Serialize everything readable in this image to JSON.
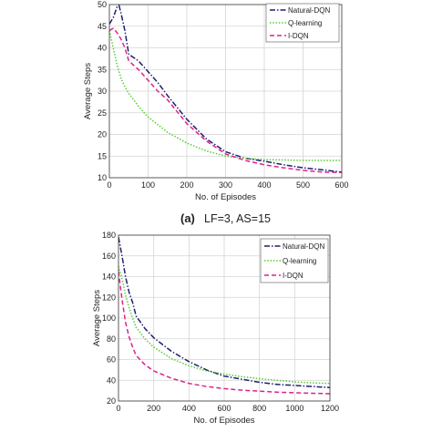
{
  "caption_a": {
    "label": "(a)",
    "text": "LF=3, AS=15"
  },
  "chart_data": [
    {
      "type": "line",
      "xlabel": "No. of Episodes",
      "ylabel": "Average Steps",
      "xlim": [
        0,
        600
      ],
      "ylim": [
        10,
        50
      ],
      "xticks": [
        "0",
        "100",
        "200",
        "300",
        "400",
        "500",
        "600"
      ],
      "yticks": [
        "10",
        "15",
        "20",
        "25",
        "30",
        "35",
        "40",
        "45",
        "50"
      ],
      "grid": true,
      "legend_position": "top-right",
      "series": [
        {
          "name": "Natural-DQN",
          "color": "#1f1f70",
          "dash": "dashdot",
          "x": [
            0,
            10,
            20,
            25,
            30,
            40,
            50,
            75,
            100,
            125,
            150,
            200,
            250,
            300,
            350,
            400,
            450,
            500,
            550,
            600
          ],
          "y": [
            45.5,
            47,
            49.5,
            49.8,
            48,
            44,
            38.5,
            37,
            34.5,
            32,
            29,
            23.5,
            19,
            16,
            14.5,
            13.8,
            13,
            12.3,
            11.8,
            11.3
          ]
        },
        {
          "name": "Q-learning",
          "color": "#55cc33",
          "dash": "dotted",
          "x": [
            0,
            10,
            20,
            30,
            40,
            50,
            75,
            100,
            150,
            200,
            250,
            300,
            350,
            400,
            450,
            500,
            550,
            600
          ],
          "y": [
            44,
            40,
            36,
            33,
            31,
            29.5,
            26.5,
            24,
            20.5,
            18,
            16.2,
            15,
            14.5,
            14.2,
            14.1,
            14,
            14,
            14
          ]
        },
        {
          "name": "I-DQN",
          "color": "#e0208a",
          "dash": "dashed",
          "x": [
            0,
            10,
            20,
            30,
            40,
            50,
            75,
            100,
            125,
            150,
            200,
            250,
            300,
            350,
            400,
            450,
            500,
            550,
            600
          ],
          "y": [
            44,
            44.5,
            43.5,
            42,
            40,
            37,
            35,
            32.5,
            30,
            28,
            22.5,
            18.5,
            15.5,
            14,
            13,
            12.3,
            11.7,
            11.3,
            11.2
          ]
        }
      ]
    },
    {
      "type": "line",
      "xlabel": "No. of Episodes",
      "ylabel": "Average Steps",
      "xlim": [
        0,
        1200
      ],
      "ylim": [
        20,
        180
      ],
      "xticks": [
        "0",
        "200",
        "400",
        "600",
        "800",
        "1000",
        "1200"
      ],
      "yticks": [
        "20",
        "40",
        "60",
        "80",
        "100",
        "120",
        "140",
        "160",
        "180"
      ],
      "grid": true,
      "legend_position": "top-right",
      "series": [
        {
          "name": "Natural-DQN",
          "color": "#1f1f70",
          "dash": "dashdot",
          "x": [
            0,
            20,
            40,
            60,
            80,
            100,
            150,
            200,
            300,
            400,
            500,
            600,
            700,
            800,
            900,
            1000,
            1100,
            1200
          ],
          "y": [
            178,
            160,
            140,
            125,
            115,
            102,
            90,
            81,
            68,
            58,
            50,
            44,
            41,
            38,
            36,
            35,
            34,
            33
          ]
        },
        {
          "name": "Q-learning",
          "color": "#55cc33",
          "dash": "dotted",
          "x": [
            0,
            20,
            40,
            60,
            80,
            100,
            150,
            200,
            300,
            400,
            500,
            600,
            700,
            800,
            900,
            1000,
            1100,
            1200
          ],
          "y": [
            150,
            138,
            122,
            110,
            100,
            91,
            80,
            72,
            61,
            54,
            49,
            46,
            43.5,
            41.5,
            40,
            38.5,
            37.5,
            37
          ]
        },
        {
          "name": "I-DQN",
          "color": "#e0208a",
          "dash": "dashed",
          "x": [
            0,
            20,
            40,
            60,
            80,
            100,
            150,
            200,
            300,
            400,
            500,
            600,
            700,
            800,
            900,
            1000,
            1100,
            1200
          ],
          "y": [
            145,
            118,
            96,
            82,
            72,
            64,
            55,
            49,
            42,
            37,
            34,
            32,
            30.5,
            29.5,
            28.5,
            28,
            27.5,
            27
          ]
        }
      ]
    }
  ]
}
